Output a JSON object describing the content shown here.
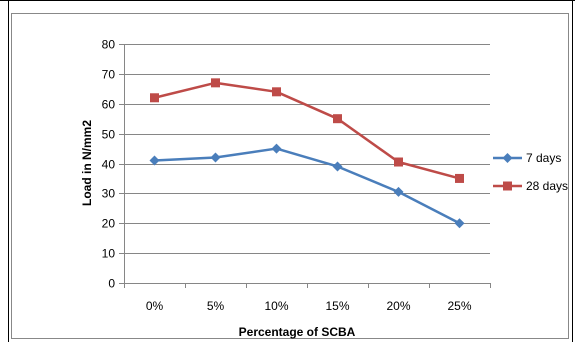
{
  "chart_data": {
    "type": "line",
    "title": "",
    "xlabel": "Percentage of SCBA",
    "ylabel": "Load in N/mm2",
    "categories": [
      "0%",
      "5%",
      "10%",
      "15%",
      "20%",
      "25%"
    ],
    "ylim": [
      0,
      80
    ],
    "yticks": [
      0,
      10,
      20,
      30,
      40,
      50,
      60,
      70,
      80
    ],
    "grid": true,
    "legend": "right",
    "series": [
      {
        "name": "7 days",
        "values": [
          41,
          42,
          45,
          39,
          30.5,
          20
        ],
        "color": "#4a7ebb",
        "marker": "diamond"
      },
      {
        "name": "28 days",
        "values": [
          62,
          67,
          64,
          55,
          40.5,
          35
        ],
        "color": "#be4b48",
        "marker": "square"
      }
    ]
  }
}
